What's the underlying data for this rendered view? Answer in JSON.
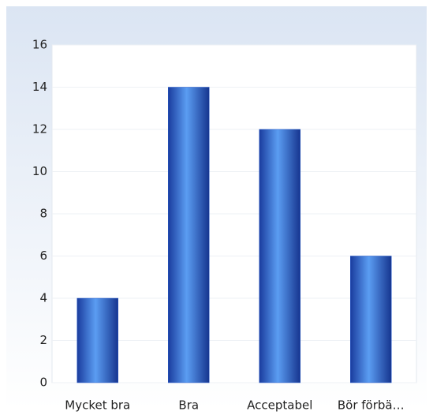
{
  "chart_data": {
    "type": "bar",
    "categories": [
      "Mycket bra",
      "Bra",
      "Acceptabel",
      "Bör förbä…"
    ],
    "values": [
      4,
      14,
      12,
      6
    ],
    "color": "#2458c8",
    "ylim": [
      0,
      16
    ],
    "yticks": [
      0,
      2,
      4,
      6,
      8,
      10,
      12,
      14,
      16
    ],
    "grid": true
  }
}
